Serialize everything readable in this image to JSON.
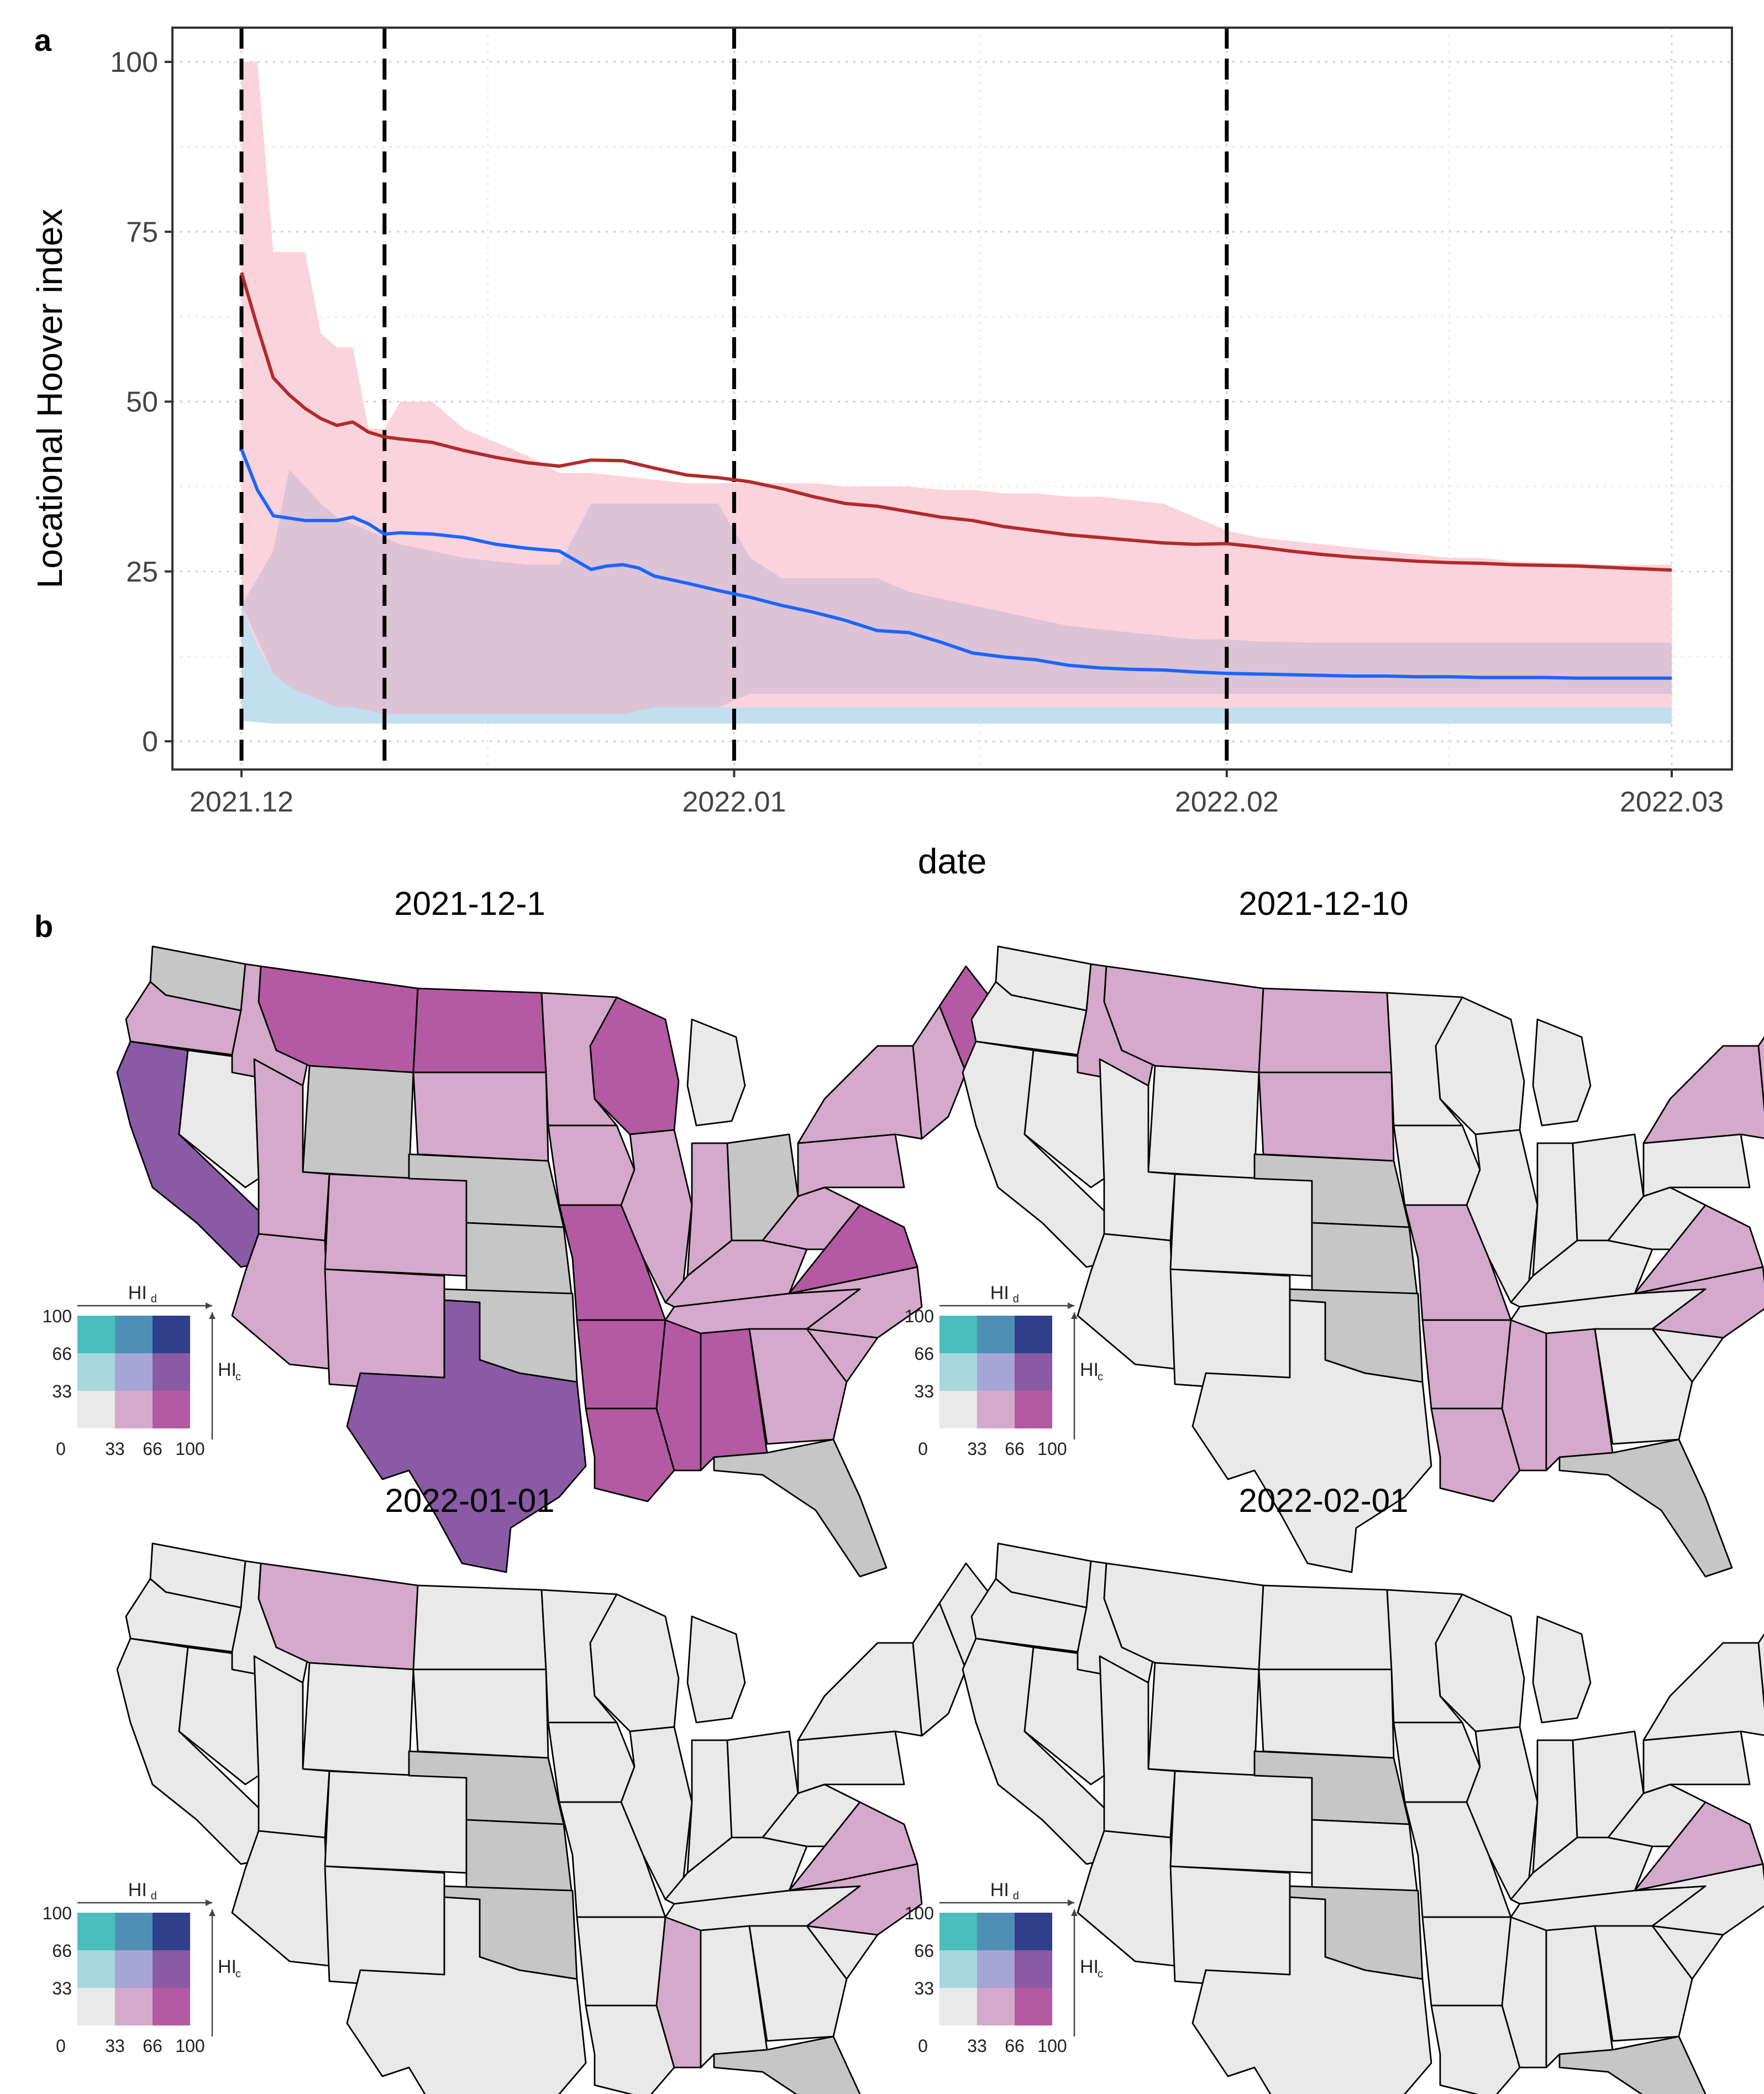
{
  "panel_labels": {
    "a": "a",
    "b": "b"
  },
  "chart_data": {
    "type": "line",
    "xlabel": "date",
    "ylabel": "Locational Hoover index",
    "xlim": [
      0,
      91
    ],
    "ylim": [
      -4,
      105
    ],
    "yticks": [
      0,
      25,
      50,
      75,
      100
    ],
    "ytick_labels": [
      "0",
      "25",
      "50",
      "75",
      "100"
    ],
    "xticks": [
      0,
      31,
      62,
      90
    ],
    "xtick_labels": [
      "2021.12",
      "2022.01",
      "2022.02",
      "2022.03"
    ],
    "vlines": [
      0,
      9,
      31,
      62
    ],
    "grid": true,
    "colors": {
      "red_line": "#b22a2a",
      "red_band": "#fbd3dc",
      "blue_line": "#1a66ff",
      "blue_band": "#c3deef",
      "overlap": "#ddc3d6"
    },
    "series": [
      {
        "name": "red",
        "color": "#b22a2a",
        "x": [
          0,
          1,
          2,
          3,
          4,
          5,
          6,
          7,
          8,
          9,
          10,
          12,
          14,
          16,
          18,
          20,
          22,
          24,
          26,
          28,
          30,
          32,
          34,
          36,
          38,
          40,
          42,
          44,
          46,
          48,
          50,
          52,
          54,
          56,
          58,
          60,
          62,
          64,
          66,
          68,
          70,
          72,
          74,
          76,
          78,
          80,
          82,
          84,
          86,
          88,
          90
        ],
        "values": [
          69,
          61,
          53.5,
          51,
          49,
          47.5,
          46.5,
          47,
          45.5,
          44.8,
          44.5,
          44,
          42.8,
          41.8,
          41,
          40.5,
          41.4,
          41.3,
          40.2,
          39.2,
          38.8,
          38.2,
          37.2,
          36,
          35,
          34.6,
          33.8,
          33,
          32.5,
          31.6,
          31,
          30.4,
          30,
          29.6,
          29.2,
          29,
          29.1,
          28.6,
          28,
          27.5,
          27.1,
          26.8,
          26.5,
          26.3,
          26.2,
          26,
          25.9,
          25.8,
          25.6,
          25.4,
          25.2
        ],
        "band_upper": [
          100,
          100,
          72,
          72,
          72,
          60,
          58,
          58,
          46,
          46,
          50,
          50,
          46,
          44,
          42,
          39.5,
          39.5,
          39,
          38.5,
          38,
          38,
          38,
          38,
          38,
          37.5,
          37.5,
          37.5,
          37,
          37,
          36.5,
          36.5,
          36,
          36,
          35.5,
          35,
          33,
          31,
          30,
          29.5,
          29,
          28.5,
          28,
          27.5,
          27,
          27,
          26.5,
          26.3,
          26.2,
          26,
          26,
          26
        ],
        "band_lower": [
          4,
          3,
          3,
          3,
          3,
          3,
          3,
          3,
          3,
          3,
          3,
          3,
          3,
          3,
          3,
          3,
          3,
          3,
          3,
          3,
          3,
          3,
          3,
          3,
          3,
          3,
          3,
          3,
          3,
          3,
          3,
          3,
          3,
          3,
          3,
          3,
          3,
          3,
          3,
          3,
          3,
          3,
          3,
          3,
          3,
          3,
          3,
          3,
          3,
          3,
          3
        ]
      },
      {
        "name": "blue",
        "color": "#1a66ff",
        "x": [
          0,
          1,
          2,
          4,
          6,
          7,
          8,
          9,
          10,
          12,
          14,
          16,
          18,
          20,
          22,
          23,
          24,
          25,
          26,
          28,
          30,
          32,
          34,
          36,
          38,
          40,
          42,
          44,
          46,
          48,
          50,
          52,
          54,
          56,
          58,
          60,
          62,
          64,
          66,
          68,
          70,
          72,
          74,
          76,
          78,
          80,
          82,
          84,
          86,
          88,
          90
        ],
        "values": [
          43,
          37,
          33.2,
          32.5,
          32.5,
          33,
          32,
          30.5,
          30.7,
          30.5,
          30,
          29,
          28.4,
          28,
          25.3,
          25.8,
          26,
          25.5,
          24.3,
          23.3,
          22.2,
          21.2,
          20,
          19,
          17.8,
          16.3,
          16,
          14.6,
          13,
          12.4,
          12,
          11.2,
          10.8,
          10.6,
          10.5,
          10.2,
          10,
          9.9,
          9.8,
          9.7,
          9.6,
          9.6,
          9.5,
          9.5,
          9.4,
          9.4,
          9.4,
          9.3,
          9.3,
          9.3,
          9.3
        ],
        "band_upper": [
          20,
          14,
          10,
          9,
          7,
          6,
          5,
          5,
          5,
          5,
          5,
          5,
          5,
          5,
          5,
          5,
          5,
          5,
          5,
          5,
          5,
          5,
          5,
          5,
          5,
          5,
          5,
          5,
          5,
          5,
          5,
          5,
          5,
          5,
          5,
          5,
          5,
          5,
          5,
          5,
          5,
          5,
          5,
          5,
          5,
          5,
          5,
          5,
          5,
          5,
          5
        ],
        "band_lower": [
          3,
          2.8,
          2.6,
          2.6,
          2.6,
          2.6,
          2.6,
          2.6,
          2.6,
          2.6,
          2.6,
          2.6,
          2.6,
          2.6,
          2.6,
          2.6,
          2.6,
          2.6,
          2.6,
          2.6,
          2.6,
          2.6,
          2.6,
          2.6,
          2.6,
          2.6,
          2.6,
          2.6,
          2.6,
          2.6,
          2.6,
          2.6,
          2.6,
          2.6,
          2.6,
          2.6,
          2.6,
          2.6,
          2.6,
          2.6,
          2.6,
          2.6,
          2.6,
          2.6,
          2.6,
          2.6,
          2.6,
          2.6,
          2.6,
          2.6,
          2.6
        ]
      },
      {
        "name": "overlap-band",
        "color": "#ddc3d6",
        "x": [
          0,
          2,
          3,
          5,
          6,
          7,
          9,
          10,
          12,
          14,
          16,
          18,
          20,
          22,
          24,
          26,
          28,
          30,
          32,
          34,
          36,
          38,
          40,
          42,
          44,
          46,
          48,
          50,
          52,
          54,
          56,
          58,
          60,
          62,
          64,
          66,
          68,
          70,
          72,
          74,
          76,
          78,
          80,
          82,
          84,
          86,
          88,
          90
        ],
        "band_upper": [
          20,
          28,
          40,
          35,
          33,
          32,
          30,
          29,
          28,
          27,
          26.5,
          26,
          26,
          35,
          35,
          35,
          35,
          35,
          27,
          24,
          24,
          24,
          24,
          22,
          21,
          20,
          19,
          18,
          17,
          16.5,
          16,
          15.5,
          15,
          15,
          14.7,
          14.6,
          14.5,
          14.5,
          14.5,
          14.5,
          14.5,
          14.5,
          14.5,
          14.5,
          14.5,
          14.5,
          14.5,
          14.5
        ],
        "band_lower": [
          20,
          10,
          8,
          6,
          5,
          5,
          4,
          4,
          4,
          4,
          4,
          4,
          4,
          4,
          4,
          5,
          5,
          5,
          7,
          7,
          7,
          7,
          7,
          7,
          7,
          7,
          7,
          7,
          7,
          7,
          7,
          7,
          7,
          7,
          7,
          7,
          7,
          7,
          7,
          7,
          7,
          7,
          7,
          7,
          7,
          7,
          7,
          7
        ]
      }
    ]
  },
  "maps": [
    {
      "title": "2021-12-1",
      "states": {
        "WA": "#c6c6c6",
        "OR": "#d4a9cb",
        "CA": "#8a5aa5",
        "NV": "#e9e9e9",
        "ID": "#d4a9cb",
        "MT": "#b35aa3",
        "WY": "#c6c6c6",
        "UT": "#d4a9cb",
        "AZ": "#d4a9cb",
        "CO": "#d4a9cb",
        "NM": "#d4a9cb",
        "ND": "#b35aa3",
        "SD": "#d4a9cb",
        "NE": "#c6c6c6",
        "KS": "#c6c6c6",
        "OK": "#c6c6c6",
        "TX": "#8a5aa5",
        "MN": "#d4a9cb",
        "IA": "#d4a9cb",
        "MO": "#b35aa3",
        "AR": "#b35aa3",
        "LA": "#b35aa3",
        "WI": "#b35aa3",
        "IL": "#d4a9cb",
        "MS": "#b35aa3",
        "MI": "#e9e9e9",
        "IN": "#d4a9cb",
        "OH": "#c6c6c6",
        "KY": "#d4a9cb",
        "TN": "#d4a9cb",
        "AL": "#b35aa3",
        "GA": "#d4a9cb",
        "FL": "#c6c6c6",
        "SC": "#d4a9cb",
        "NC": "#d4a9cb",
        "VA": "#b35aa3",
        "WV": "#d4a9cb",
        "PA": "#d4a9cb",
        "NY": "#d4a9cb",
        "ME": "#b35aa3",
        "NE_US": "#d4a9cb"
      }
    },
    {
      "title": "2021-12-10",
      "states": {
        "WA": "#e9e9e9",
        "OR": "#e9e9e9",
        "CA": "#e9e9e9",
        "NV": "#e9e9e9",
        "ID": "#d4a9cb",
        "MT": "#d4a9cb",
        "WY": "#e9e9e9",
        "UT": "#e9e9e9",
        "AZ": "#e9e9e9",
        "CO": "#e9e9e9",
        "NM": "#e9e9e9",
        "ND": "#d4a9cb",
        "SD": "#d4a9cb",
        "NE": "#c6c6c6",
        "KS": "#c6c6c6",
        "OK": "#c6c6c6",
        "TX": "#e9e9e9",
        "MN": "#e9e9e9",
        "IA": "#e9e9e9",
        "MO": "#d4a9cb",
        "AR": "#d4a9cb",
        "LA": "#d4a9cb",
        "WI": "#e9e9e9",
        "IL": "#e9e9e9",
        "MS": "#d4a9cb",
        "MI": "#e9e9e9",
        "IN": "#e9e9e9",
        "OH": "#e9e9e9",
        "KY": "#e9e9e9",
        "TN": "#e9e9e9",
        "AL": "#d4a9cb",
        "GA": "#e9e9e9",
        "FL": "#c6c6c6",
        "SC": "#e9e9e9",
        "NC": "#d4a9cb",
        "VA": "#d4a9cb",
        "WV": "#e9e9e9",
        "PA": "#e9e9e9",
        "NY": "#d4a9cb",
        "ME": "#d4a9cb",
        "NE_US": "#d4a9cb"
      }
    },
    {
      "title": "2022-01-01",
      "states": {
        "WA": "#e9e9e9",
        "OR": "#e9e9e9",
        "CA": "#e9e9e9",
        "NV": "#e9e9e9",
        "ID": "#e9e9e9",
        "MT": "#d4a9cb",
        "WY": "#e9e9e9",
        "UT": "#e9e9e9",
        "AZ": "#e9e9e9",
        "CO": "#e9e9e9",
        "NM": "#e9e9e9",
        "ND": "#e9e9e9",
        "SD": "#e9e9e9",
        "NE": "#c6c6c6",
        "KS": "#c6c6c6",
        "OK": "#c6c6c6",
        "TX": "#e9e9e9",
        "MN": "#e9e9e9",
        "IA": "#e9e9e9",
        "MO": "#e9e9e9",
        "AR": "#e9e9e9",
        "LA": "#e9e9e9",
        "WI": "#e9e9e9",
        "IL": "#e9e9e9",
        "MS": "#d4a9cb",
        "MI": "#e9e9e9",
        "IN": "#e9e9e9",
        "OH": "#e9e9e9",
        "KY": "#e9e9e9",
        "TN": "#e9e9e9",
        "AL": "#e9e9e9",
        "GA": "#e9e9e9",
        "FL": "#c6c6c6",
        "SC": "#e9e9e9",
        "NC": "#d4a9cb",
        "VA": "#d4a9cb",
        "WV": "#e9e9e9",
        "PA": "#e9e9e9",
        "NY": "#e9e9e9",
        "ME": "#e9e9e9",
        "NE_US": "#e9e9e9"
      }
    },
    {
      "title": "2022-02-01",
      "states": {
        "WA": "#e9e9e9",
        "OR": "#e9e9e9",
        "CA": "#e9e9e9",
        "NV": "#e9e9e9",
        "ID": "#e9e9e9",
        "MT": "#e9e9e9",
        "WY": "#e9e9e9",
        "UT": "#e9e9e9",
        "AZ": "#e9e9e9",
        "CO": "#e9e9e9",
        "NM": "#e9e9e9",
        "ND": "#e9e9e9",
        "SD": "#e9e9e9",
        "NE": "#c6c6c6",
        "KS": "#e9e9e9",
        "OK": "#c6c6c6",
        "TX": "#e9e9e9",
        "MN": "#e9e9e9",
        "IA": "#e9e9e9",
        "MO": "#e9e9e9",
        "AR": "#e9e9e9",
        "LA": "#e9e9e9",
        "WI": "#e9e9e9",
        "IL": "#e9e9e9",
        "MS": "#e9e9e9",
        "MI": "#e9e9e9",
        "IN": "#e9e9e9",
        "OH": "#e9e9e9",
        "KY": "#e9e9e9",
        "TN": "#e9e9e9",
        "AL": "#e9e9e9",
        "GA": "#e9e9e9",
        "FL": "#c6c6c6",
        "SC": "#e9e9e9",
        "NC": "#e9e9e9",
        "VA": "#d4a9cb",
        "WV": "#e9e9e9",
        "PA": "#e9e9e9",
        "NY": "#e9e9e9",
        "ME": "#e9e9e9",
        "NE_US": "#e9e9e9"
      }
    }
  ],
  "legend": {
    "hi_d_label": "HI",
    "hi_d_sub": "d",
    "hi_c_label": "HI",
    "hi_c_sub": "c",
    "y_ticks": [
      "100",
      "66",
      "33"
    ],
    "x_ticks": [
      "0",
      "33",
      "66",
      "100"
    ],
    "grid_colors": [
      [
        "#4cbdbd",
        "#4f8fb5",
        "#2f3f8b"
      ],
      [
        "#a7d7dc",
        "#a6a6d6",
        "#8a5aa5"
      ],
      [
        "#e9e9e9",
        "#d4a9cb",
        "#b35aa3"
      ]
    ]
  }
}
